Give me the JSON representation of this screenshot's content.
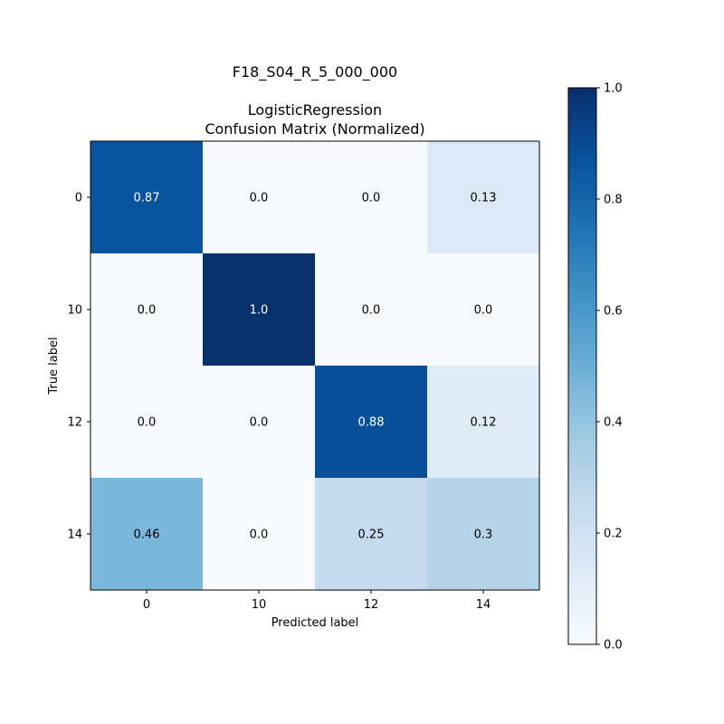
{
  "chart_data": {
    "type": "heatmap",
    "suptitle": "F18_S04_R_5_000_000",
    "title_line1": "LogisticRegression",
    "title_line2": "Confusion Matrix (Normalized)",
    "xlabel": "Predicted label",
    "ylabel": "True label",
    "x_categories": [
      "0",
      "10",
      "12",
      "14"
    ],
    "y_categories": [
      "0",
      "10",
      "12",
      "14"
    ],
    "values": [
      [
        0.87,
        0.0,
        0.0,
        0.13
      ],
      [
        0.0,
        1.0,
        0.0,
        0.0
      ],
      [
        0.0,
        0.0,
        0.88,
        0.12
      ],
      [
        0.46,
        0.0,
        0.25,
        0.3
      ]
    ],
    "cell_labels": [
      [
        "0.87",
        "0.0",
        "0.0",
        "0.13"
      ],
      [
        "0.0",
        "1.0",
        "0.0",
        "0.0"
      ],
      [
        "0.0",
        "0.0",
        "0.88",
        "0.12"
      ],
      [
        "0.46",
        "0.0",
        "0.25",
        "0.3"
      ]
    ],
    "colormap": "Blues",
    "colorbar": {
      "range": [
        0.0,
        1.0
      ],
      "ticks": [
        0.0,
        0.2,
        0.4,
        0.6,
        0.8,
        1.0
      ],
      "tick_labels": [
        "0.0",
        "0.2",
        "0.4",
        "0.6",
        "0.8",
        "1.0"
      ]
    },
    "colors": {
      "text_dark": "#000000",
      "text_light": "#ffffff"
    }
  }
}
